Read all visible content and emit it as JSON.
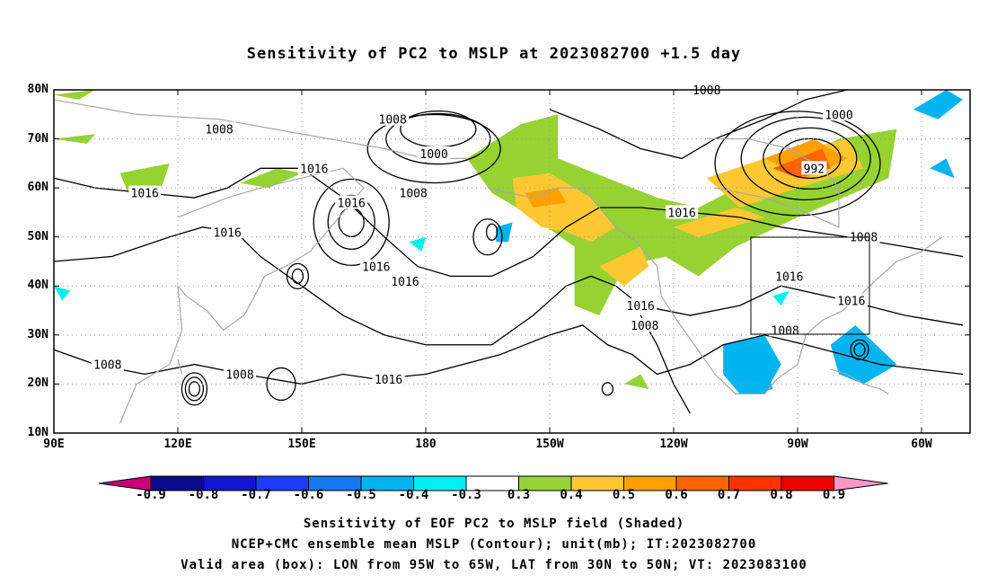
{
  "title": "Sensitivity of PC2 to MSLP at 2023082700 +1.5 day",
  "captions": [
    "Sensitivity of EOF PC2 to MSLP field (Shaded)",
    "NCEP+CMC ensemble mean MSLP (Contour); unit(mb); IT:2023082700",
    "Valid area (box): LON from 95W to 65W, LAT from 30N to 50N; VT: 2023083100"
  ],
  "lat_labels": [
    "80N",
    "70N",
    "60N",
    "50N",
    "40N",
    "30N",
    "20N",
    "10N"
  ],
  "lon_labels": [
    "90E",
    "120E",
    "150E",
    "180",
    "150W",
    "120W",
    "90W",
    "60W"
  ],
  "colorbar": {
    "labels": [
      "-0.9",
      "-0.8",
      "-0.7",
      "-0.6",
      "-0.5",
      "-0.4",
      "-0.3",
      "0.3",
      "0.4",
      "0.5",
      "0.6",
      "0.7",
      "0.8",
      "0.9"
    ],
    "colors": [
      "#0a0a8c",
      "#1414d2",
      "#1e3cff",
      "#1478f0",
      "#00b4f0",
      "#00f0f0",
      "#ffffff",
      "#96d232",
      "#ffc832",
      "#ffa000",
      "#ff6400",
      "#ff3200",
      "#f00000"
    ],
    "low_extend_color": "#c80078",
    "high_extend_color": "#ff96c8"
  },
  "contour_labels": [
    {
      "text": "1008",
      "lon": 130,
      "lat": 72
    },
    {
      "text": "1016",
      "lon": 112,
      "lat": 59
    },
    {
      "text": "1016",
      "lon": 132,
      "lat": 51
    },
    {
      "text": "1008",
      "lon": 177,
      "lat": 59
    },
    {
      "text": "1008",
      "lon": 172,
      "lat": 74
    },
    {
      "text": "1000",
      "lon": 182,
      "lat": 67
    },
    {
      "text": "1016",
      "lon": 153,
      "lat": 64
    },
    {
      "text": "1016",
      "lon": 162,
      "lat": 57
    },
    {
      "text": "1016",
      "lon": 168,
      "lat": 44
    },
    {
      "text": "1016",
      "lon": 175,
      "lat": 41
    },
    {
      "text": "1016",
      "lon": 242,
      "lat": 55
    },
    {
      "text": "1008",
      "lon": 248,
      "lat": 80
    },
    {
      "text": "1000",
      "lon": 280,
      "lat": 75
    },
    {
      "text": "992",
      "lon": 274,
      "lat": 64
    },
    {
      "text": "1008",
      "lon": 286,
      "lat": 50
    },
    {
      "text": "1016",
      "lon": 268,
      "lat": 42
    },
    {
      "text": "1016",
      "lon": 283,
      "lat": 37
    },
    {
      "text": "1016",
      "lon": 232,
      "lat": 36
    },
    {
      "text": "1008",
      "lon": 233,
      "lat": 32
    },
    {
      "text": "1008",
      "lon": 267,
      "lat": 31
    },
    {
      "text": "1008",
      "lon": 103,
      "lat": 24
    },
    {
      "text": "1008",
      "lon": 135,
      "lat": 22
    },
    {
      "text": "1016",
      "lon": 171,
      "lat": 21
    }
  ]
}
